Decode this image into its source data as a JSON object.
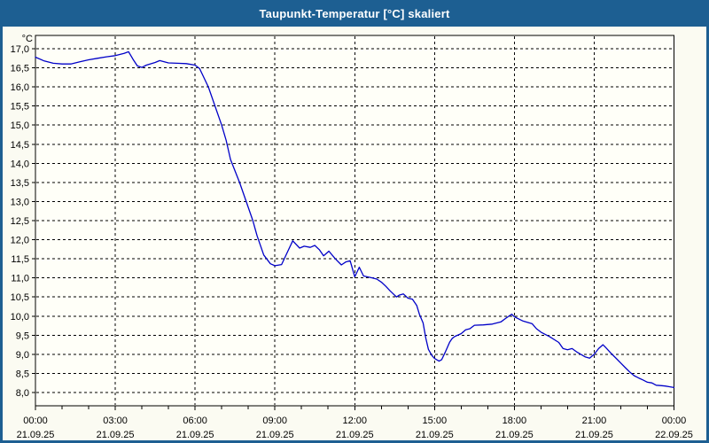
{
  "window": {
    "title": "Taupunkt-Temperatur [°C] skaliert"
  },
  "colors": {
    "titlebar": "#1d5f92",
    "border": "#1d5f92",
    "title_text": "#ffffff",
    "background": "#fbfbf2",
    "plot_background": "#fffff8",
    "line": "#0000c8",
    "grid": "#000000",
    "axis": "#000000",
    "text": "#000000"
  },
  "chart_data": {
    "type": "line",
    "title": "Taupunkt-Temperatur [°C] skaliert",
    "ylabel": "°C",
    "xlabel": "",
    "y_min": 8.0,
    "y_max": 17.0,
    "y_step": 0.5,
    "y_tick_labels": [
      "17,0",
      "16,5",
      "16,0",
      "15,5",
      "15,0",
      "14,5",
      "14,0",
      "13,5",
      "13,0",
      "12,5",
      "12,0",
      "11,5",
      "11,0",
      "10,5",
      "10,0",
      "9,5",
      "9,0",
      "8,5",
      "8,0"
    ],
    "x_hours": 24,
    "x_minor_tick_every_hours": 1,
    "grid": "dashed",
    "legend": "none",
    "x_ticks": [
      {
        "hour": 0,
        "time": "00:00",
        "date": "21.09.25"
      },
      {
        "hour": 3,
        "time": "03:00",
        "date": "21.09.25"
      },
      {
        "hour": 6,
        "time": "06:00",
        "date": "21.09.25"
      },
      {
        "hour": 9,
        "time": "09:00",
        "date": "21.09.25"
      },
      {
        "hour": 12,
        "time": "12:00",
        "date": "21.09.25"
      },
      {
        "hour": 15,
        "time": "15:00",
        "date": "21.09.25"
      },
      {
        "hour": 18,
        "time": "18:00",
        "date": "21.09.25"
      },
      {
        "hour": 21,
        "time": "21:00",
        "date": "21.09.25"
      },
      {
        "hour": 24,
        "time": "00:00",
        "date": "22.09.25"
      }
    ],
    "series": [
      {
        "name": "Taupunkt-Temperatur",
        "color": "#0000c8",
        "points": [
          [
            0,
            16.78
          ],
          [
            0.33,
            16.68
          ],
          [
            0.67,
            16.62
          ],
          [
            1,
            16.6
          ],
          [
            1.33,
            16.6
          ],
          [
            1.67,
            16.66
          ],
          [
            2,
            16.71
          ],
          [
            2.33,
            16.75
          ],
          [
            2.67,
            16.79
          ],
          [
            3,
            16.82
          ],
          [
            3.33,
            16.88
          ],
          [
            3.5,
            16.92
          ],
          [
            3.67,
            16.72
          ],
          [
            3.83,
            16.55
          ],
          [
            4,
            16.51
          ],
          [
            4.17,
            16.57
          ],
          [
            4.5,
            16.64
          ],
          [
            4.67,
            16.69
          ],
          [
            5,
            16.63
          ],
          [
            5.33,
            16.62
          ],
          [
            5.67,
            16.61
          ],
          [
            6,
            16.57
          ],
          [
            6.17,
            16.48
          ],
          [
            6.5,
            16.0
          ],
          [
            6.75,
            15.5
          ],
          [
            7,
            15.0
          ],
          [
            7.17,
            14.6
          ],
          [
            7.33,
            14.1
          ],
          [
            7.67,
            13.5
          ],
          [
            7.92,
            13.0
          ],
          [
            8.17,
            12.5
          ],
          [
            8.33,
            12.1
          ],
          [
            8.58,
            11.6
          ],
          [
            8.83,
            11.37
          ],
          [
            9,
            11.32
          ],
          [
            9.25,
            11.35
          ],
          [
            9.5,
            11.72
          ],
          [
            9.67,
            11.97
          ],
          [
            9.93,
            11.78
          ],
          [
            10.1,
            11.83
          ],
          [
            10.33,
            11.8
          ],
          [
            10.5,
            11.85
          ],
          [
            10.67,
            11.74
          ],
          [
            10.83,
            11.58
          ],
          [
            11.03,
            11.7
          ],
          [
            11.27,
            11.5
          ],
          [
            11.5,
            11.34
          ],
          [
            11.67,
            11.42
          ],
          [
            11.83,
            11.45
          ],
          [
            12,
            11.03
          ],
          [
            12.17,
            11.28
          ],
          [
            12.33,
            11.05
          ],
          [
            12.67,
            11.0
          ],
          [
            12.83,
            10.97
          ],
          [
            13,
            10.89
          ],
          [
            13.17,
            10.78
          ],
          [
            13.33,
            10.66
          ],
          [
            13.57,
            10.5
          ],
          [
            13.67,
            10.55
          ],
          [
            13.83,
            10.58
          ],
          [
            14,
            10.47
          ],
          [
            14.17,
            10.44
          ],
          [
            14.33,
            10.28
          ],
          [
            14.43,
            10.05
          ],
          [
            14.57,
            9.82
          ],
          [
            14.67,
            9.43
          ],
          [
            14.77,
            9.13
          ],
          [
            14.9,
            8.97
          ],
          [
            15,
            8.89
          ],
          [
            15.17,
            8.82
          ],
          [
            15.27,
            8.86
          ],
          [
            15.4,
            9.05
          ],
          [
            15.57,
            9.32
          ],
          [
            15.67,
            9.42
          ],
          [
            15.77,
            9.47
          ],
          [
            16,
            9.54
          ],
          [
            16.17,
            9.64
          ],
          [
            16.33,
            9.67
          ],
          [
            16.5,
            9.76
          ],
          [
            16.83,
            9.77
          ],
          [
            17.17,
            9.79
          ],
          [
            17.5,
            9.85
          ],
          [
            17.67,
            9.94
          ],
          [
            17.9,
            10.05
          ],
          [
            18,
            9.98
          ],
          [
            18.33,
            9.87
          ],
          [
            18.67,
            9.8
          ],
          [
            18.83,
            9.67
          ],
          [
            19,
            9.58
          ],
          [
            19.33,
            9.46
          ],
          [
            19.67,
            9.31
          ],
          [
            19.83,
            9.15
          ],
          [
            20,
            9.12
          ],
          [
            20.17,
            9.15
          ],
          [
            20.33,
            9.07
          ],
          [
            20.5,
            9.0
          ],
          [
            20.67,
            8.93
          ],
          [
            20.83,
            8.9
          ],
          [
            21,
            9.0
          ],
          [
            21.17,
            9.15
          ],
          [
            21.33,
            9.25
          ],
          [
            21.43,
            9.18
          ],
          [
            21.67,
            9.0
          ],
          [
            21.83,
            8.89
          ],
          [
            22,
            8.77
          ],
          [
            22.17,
            8.65
          ],
          [
            22.33,
            8.54
          ],
          [
            22.5,
            8.44
          ],
          [
            22.67,
            8.38
          ],
          [
            22.83,
            8.33
          ],
          [
            23,
            8.27
          ],
          [
            23.17,
            8.25
          ],
          [
            23.33,
            8.19
          ],
          [
            23.5,
            8.18
          ],
          [
            23.67,
            8.17
          ],
          [
            23.83,
            8.15
          ],
          [
            24,
            8.13
          ]
        ]
      }
    ]
  }
}
